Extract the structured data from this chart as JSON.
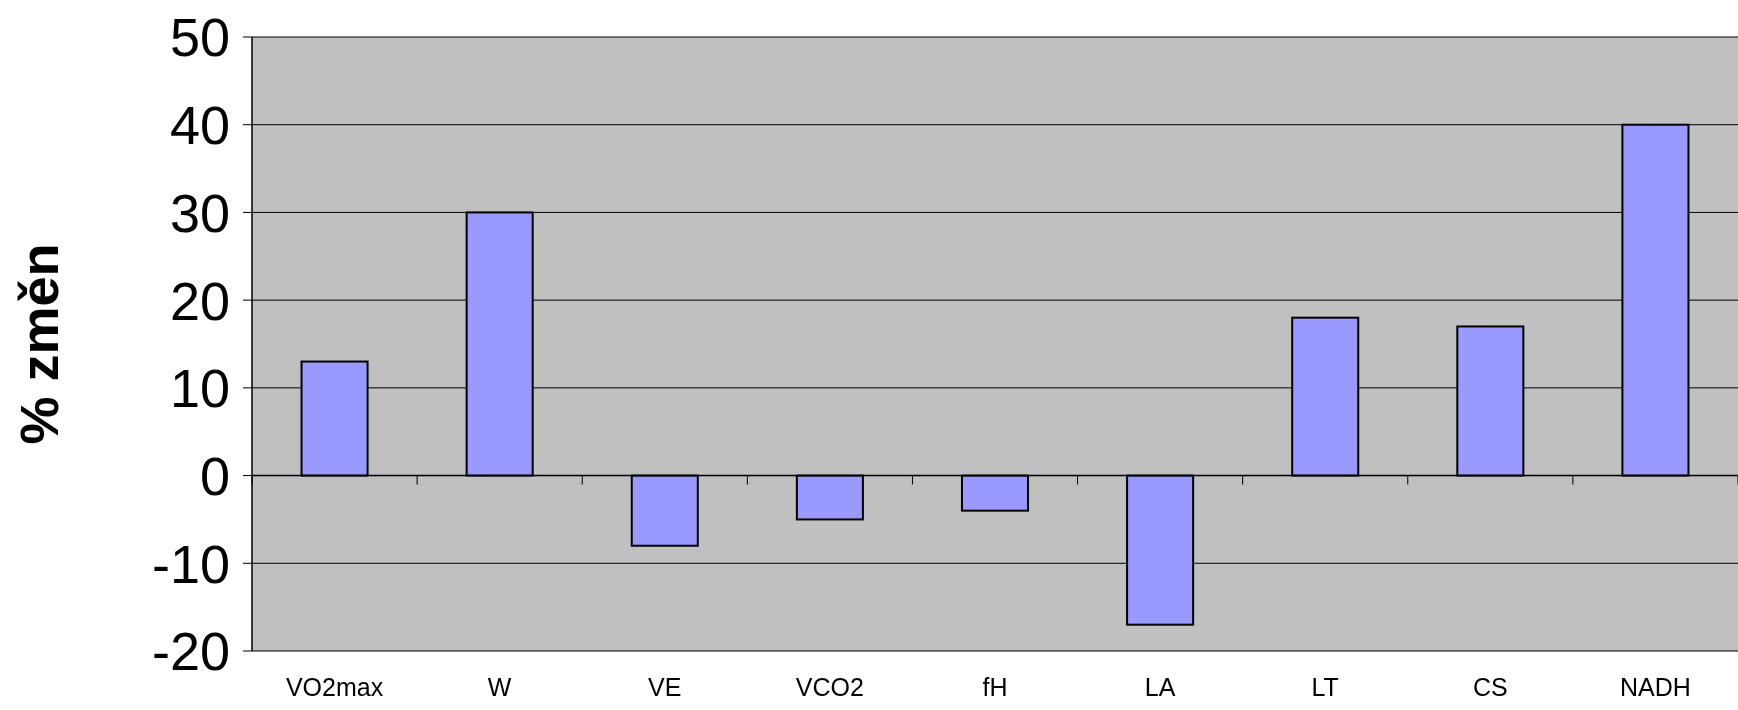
{
  "chart_data": {
    "type": "bar",
    "ylabel": "% změn",
    "categories": [
      "VO2max",
      "W",
      "VE",
      "VCO2",
      "fH",
      "LA",
      "LT",
      "CS",
      "NADH"
    ],
    "values": [
      13,
      30,
      -8,
      -5,
      -4,
      -17,
      18,
      17,
      40
    ],
    "color": "#9999ff",
    "ylim": [
      -20,
      50
    ],
    "yticks": [
      -20,
      -10,
      0,
      10,
      20,
      30,
      40,
      50
    ],
    "grid": "y"
  }
}
